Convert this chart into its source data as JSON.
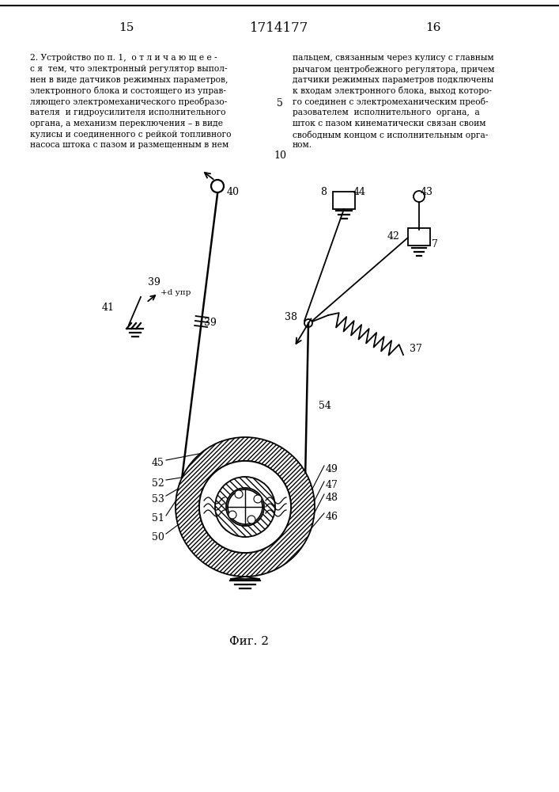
{
  "page_num_left": "15",
  "page_num_center": "1714177",
  "page_num_right": "16",
  "line_num_5": "5",
  "line_num_10": "10",
  "text_col1": [
    "2. Устройство по п. 1,  о т л и ч а ю щ е е -",
    "с я  тем, что электронный регулятор выпол-",
    "нен в виде датчиков режимных параметров,",
    "электронного блока и состоящего из управ-",
    "ляющего электромеханического преобразо-",
    "вателя  и гидроусилителя исполнительного",
    "органа, а механизм переключения – в виде",
    "кулисы и соединенного с рейкой топливного",
    "насоса штока с пазом и размещенным в нем"
  ],
  "text_col2": [
    "пальцем, связанным через кулису с главным",
    "рычагом центробежного регулятора, причем",
    "датчики режимных параметров подключены",
    "к входам электронного блока, выход которо-",
    "го соединен с электромеханическим преоб-",
    "разователем  исполнительного  органа,  а",
    "шток с пазом кинематически связан своим",
    "свободным концом с исполнительным орга-",
    "ном."
  ],
  "fig_caption": "Фиг. 2",
  "bg_color": "#ffffff",
  "ink_color": "#000000",
  "cc": [
    310,
    640
  ],
  "R_out": 88,
  "R_in": 58,
  "R_mid2": 38,
  "R_hub": 22
}
